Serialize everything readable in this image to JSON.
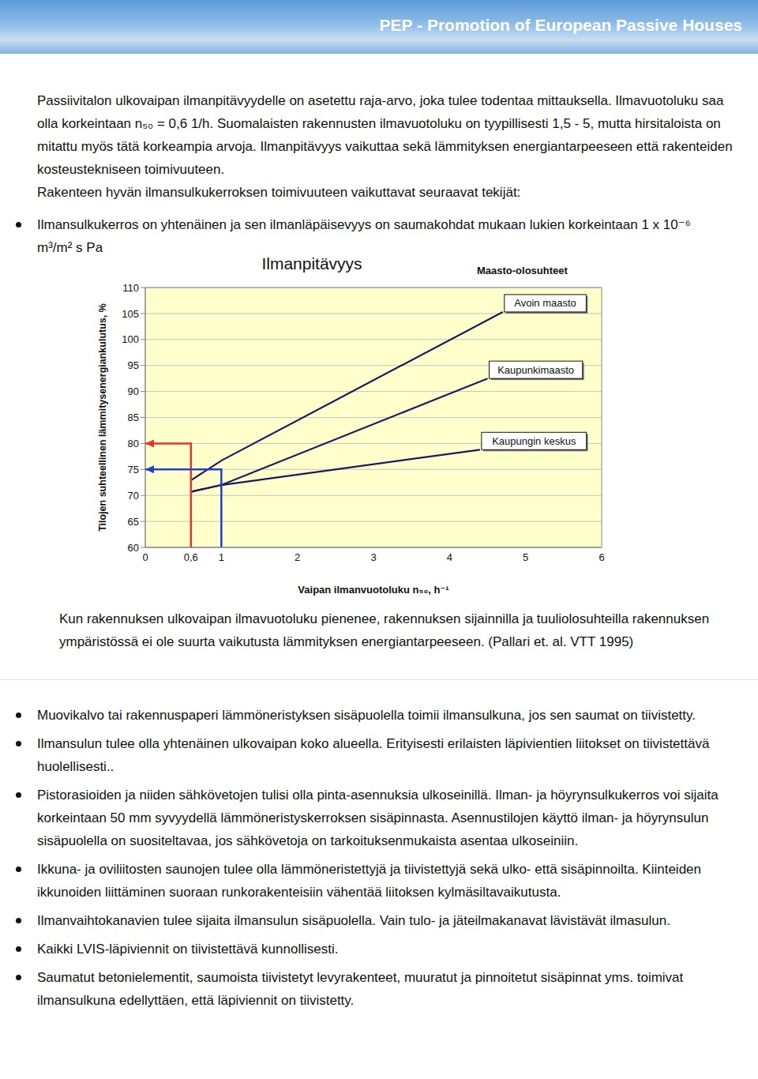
{
  "header": {
    "title": "PEP - Promotion of European Passive Houses"
  },
  "paragraphs": [
    "Passiivitalon ulkovaipan ilmanpitävyydelle on asetettu raja-arvo, joka tulee todentaa mittauksella. Ilmavuotoluku saa olla korkeintaan n₅₀ = 0,6 1/h. Suomalaisten rakennusten ilmavuotoluku on tyypillisesti 1,5 - 5, mutta hirsitaloista on mitattu myös tätä korkeampia arvoja. Ilmanpitävyys vaikuttaa sekä lämmityksen energiantarpeeseen että rakenteiden kosteustekniseen toimivuuteen.",
    "Rakenteen hyvän ilmansulkukerroksen toimivuuteen vaikuttavat seuraavat tekijät:"
  ],
  "bullets_top": [
    "Ilmansulkukerros on yhtenäinen ja sen ilmanläpäisevyys on saumakohdat mukaan lukien korkeintaan 1 x 10⁻⁶ m³/m² s Pa"
  ],
  "chart_data": {
    "type": "line",
    "title": "Ilmanpitävyys",
    "x_label": "Vaipan ilmanvuotoluku n₅₀, h⁻¹",
    "y_label": "Tilojen suhteellinen lämmitysenergiankulutus, %",
    "legend_title": "Maasto-olosuhteet",
    "series": [
      {
        "name": "Avoin maasto",
        "color": "#1a1a5e",
        "x": [
          0.6,
          1,
          4.7
        ],
        "values": [
          72.9,
          76.7,
          105.3
        ]
      },
      {
        "name": "Kaupunkimaasto",
        "color": "#1a1a5e",
        "x": [
          0.6,
          1,
          4.5
        ],
        "values": [
          70.7,
          72.0,
          92.5
        ]
      },
      {
        "name": "Kaupungin keskus",
        "color": "#1a1a5e",
        "x": [
          0.6,
          1,
          4.4
        ],
        "values": [
          70.7,
          72.0,
          78.8
        ]
      }
    ],
    "arrows": [
      {
        "x": 0.6,
        "y": 80,
        "color": "#e8322e"
      },
      {
        "x": 1,
        "y": 75,
        "color": "#1e3fd6"
      }
    ],
    "xlim": [
      0,
      6
    ],
    "xticks": [
      0,
      {
        "value": 0.6,
        "label": "0,6"
      },
      1,
      2,
      3,
      4,
      5,
      6
    ],
    "ylim": [
      60,
      110
    ],
    "yticks": [
      60,
      65,
      70,
      75,
      80,
      85,
      90,
      95,
      100,
      105,
      110
    ],
    "grid": true
  },
  "caption": "Kun rakennuksen ulkovaipan ilmavuotoluku pienenee, rakennuksen sijainnilla ja tuuliolosuhteilla rakennuksen ympäristössä ei ole suurta vaikutusta lämmityksen energiantarpeeseen. (Pallari et. al. VTT 1995)",
  "bullets": [
    "Muovikalvo tai rakennuspaperi lämmöneristyksen sisäpuolella toimii ilmansulkuna, jos sen saumat on tiivistetty.",
    "Ilmansulun tulee olla yhtenäinen ulkovaipan koko alueella. Erityisesti erilaisten läpivientien liitokset on tiivistettävä huolellisesti..",
    "Pistorasioiden ja niiden sähkövetojen tulisi olla pinta-asennuksia ulkoseinillä. Ilman- ja höyrynsulkukerros voi sijaita korkeintaan 50 mm syvyydellä lämmöneristyskerroksen sisäpinnasta. Asennustilojen käyttö ilman- ja höyrynsulun sisäpuolella on suositeltavaa, jos sähkövetoja on tarkoituksenmukaista asentaa ulkoseiniin.",
    "Ikkuna- ja oviliitosten saunojen tulee olla lämmöneristettyjä ja tiivistettyjä sekä ulko- että sisäpinnoilta. Kiinteiden ikkunoiden liittäminen suoraan runkorakenteisiin vähentää liitoksen kylmäsiltavaikutusta.",
    "Ilmanvaihtokanavien tulee sijaita ilmansulun sisäpuolella. Vain tulo- ja jäteilmakanavat lävistävät ilmasulun.",
    "Kaikki LVIS-läpiviennit on tiivistettävä kunnollisesti.",
    "Saumatut betonielementit, saumoista tiivistetyt levyrakenteet, muuratut ja pinnoitetut sisäpinnat yms. toimivat ilmansulkuna edellyttäen, että läpiviennit on tiivistetty."
  ]
}
